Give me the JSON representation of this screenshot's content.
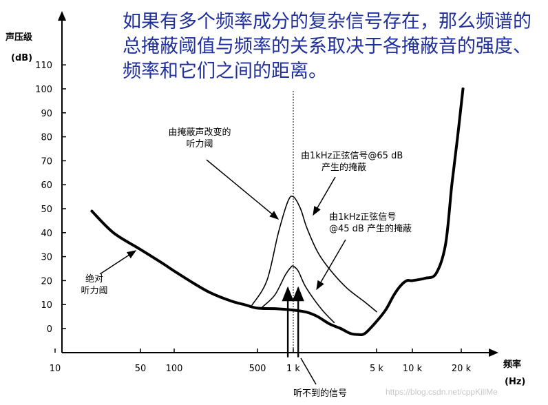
{
  "heading": "如果有多个频率成分的复杂信号存在，那么频谱的总掩蔽阈值与频率的关系取决于各掩蔽音的强度、频率和它们之间的距离。",
  "watermark": "https://blog.csdn.net/cppKillMe",
  "chart_data": {
    "type": "line",
    "ylabel": "声压级",
    "yunit": "(dB)",
    "xlabel": "频率",
    "xunit": "(Hz)",
    "xscale": "log",
    "xlim": [
      10,
      30000
    ],
    "ylim": [
      -3,
      112
    ],
    "yticks": [
      0,
      10,
      20,
      30,
      40,
      50,
      60,
      70,
      80,
      90,
      100,
      110
    ],
    "xticks": [
      {
        "value": 10,
        "label": "10"
      },
      {
        "value": 50,
        "label": "50"
      },
      {
        "value": 100,
        "label": "100"
      },
      {
        "value": 500,
        "label": "500"
      },
      {
        "value": 1000,
        "label": "1 k"
      },
      {
        "value": 5000,
        "label": "5 k"
      },
      {
        "value": 10000,
        "label": "10 k"
      },
      {
        "value": 20000,
        "label": "20 k"
      }
    ],
    "marker_frequency": 1000,
    "series": [
      {
        "id": "absolute-threshold",
        "points": [
          [
            20,
            49
          ],
          [
            30,
            40
          ],
          [
            50,
            33
          ],
          [
            80,
            27
          ],
          [
            100,
            24
          ],
          [
            150,
            18.5
          ],
          [
            200,
            15
          ],
          [
            300,
            11.5
          ],
          [
            400,
            9.8
          ],
          [
            500,
            8.5
          ],
          [
            700,
            8.3
          ],
          [
            1000,
            7.7
          ],
          [
            1300,
            6.8
          ],
          [
            1600,
            5
          ],
          [
            2000,
            2
          ],
          [
            2500,
            0
          ],
          [
            3000,
            -2
          ],
          [
            3500,
            -2.5
          ],
          [
            4000,
            -2
          ],
          [
            5000,
            3
          ],
          [
            6000,
            8
          ],
          [
            7000,
            14
          ],
          [
            8000,
            18
          ],
          [
            9000,
            20
          ],
          [
            10000,
            20
          ],
          [
            12000,
            21
          ],
          [
            14000,
            23
          ],
          [
            16000,
            35
          ],
          [
            17500,
            60
          ],
          [
            19000,
            80
          ],
          [
            20500,
            100
          ]
        ]
      },
      {
        "id": "masking-65db",
        "points": [
          [
            450,
            9.8
          ],
          [
            600,
            20
          ],
          [
            750,
            40
          ],
          [
            900,
            53
          ],
          [
            1000,
            55
          ],
          [
            1150,
            50
          ],
          [
            1300,
            42
          ],
          [
            1600,
            32
          ],
          [
            2000,
            25
          ],
          [
            2800,
            17
          ],
          [
            4000,
            11
          ],
          [
            5000,
            7
          ]
        ]
      },
      {
        "id": "masking-45db",
        "points": [
          [
            550,
            9
          ],
          [
            700,
            14
          ],
          [
            850,
            22
          ],
          [
            950,
            25.5
          ],
          [
            1000,
            26
          ],
          [
            1100,
            24
          ],
          [
            1250,
            18
          ],
          [
            1500,
            12
          ],
          [
            1800,
            7
          ],
          [
            2200,
            2.5
          ]
        ]
      },
      {
        "id": "inaudible-signal-left",
        "points": [
          [
            900,
            -12
          ],
          [
            900,
            17
          ]
        ]
      },
      {
        "id": "inaudible-signal-right",
        "points": [
          [
            1100,
            -12
          ],
          [
            1100,
            17
          ]
        ]
      }
    ],
    "annotations": [
      {
        "id": "threshold-by-masker",
        "lines": [
          "由掩蔽声改变的",
          "听力阈"
        ]
      },
      {
        "id": "masking-65db",
        "lines": [
          "由1kHz正弦信号@65 dB",
          "产生的掩蔽"
        ]
      },
      {
        "id": "masking-45db",
        "lines": [
          "由1kHz正弦信号",
          "@45 dB 产生的掩蔽"
        ]
      },
      {
        "id": "absolute-threshold",
        "lines": [
          "绝对",
          "听力阈"
        ]
      },
      {
        "id": "inaudible-signal",
        "lines": [
          "听不到的信号"
        ]
      }
    ]
  }
}
